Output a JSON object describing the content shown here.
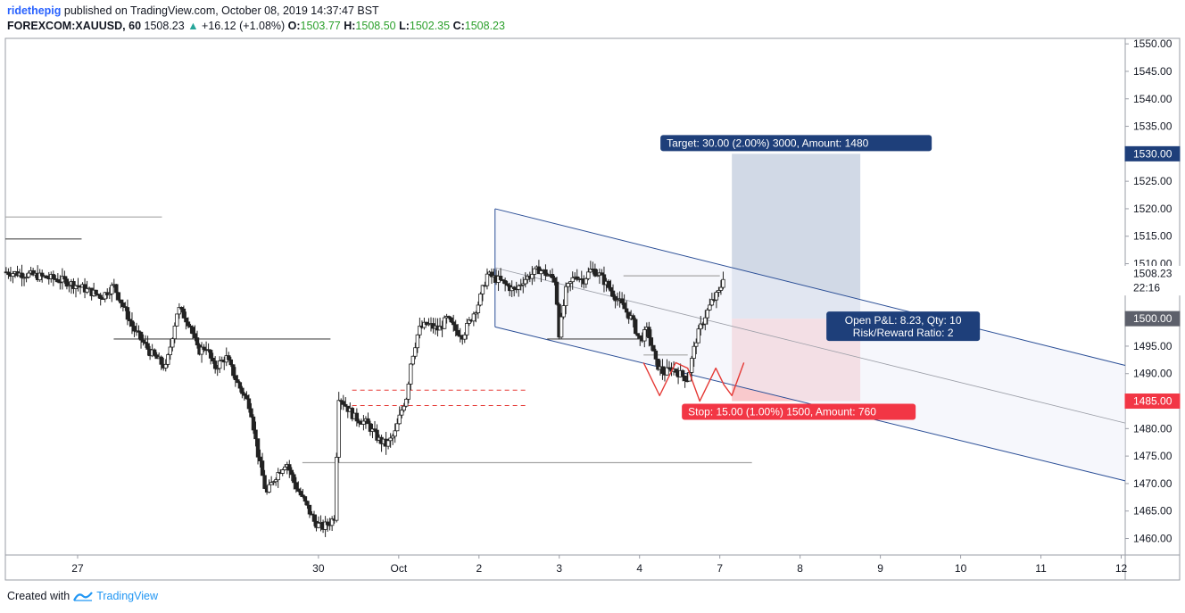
{
  "header": {
    "user": "ridethepig",
    "published": "published on TradingView.com, October 08, 2019 14:37:47 BST",
    "symbol": "FOREXCOM:XAUUSD, 60",
    "last": "1508.23",
    "change": "+16.12 (+1.08%)",
    "o_label": "O:",
    "o": "1503.77",
    "h_label": "H:",
    "h": "1508.50",
    "l_label": "L:",
    "l": "1502.35",
    "c_label": "C:",
    "c": "1508.23"
  },
  "footer": {
    "created": "Created with",
    "brand": "TradingView"
  },
  "colors": {
    "up": "#26a69a",
    "down": "#ef5350",
    "channel": "#2a4e96",
    "target_box": "#d1d9e6",
    "stop_box": "#f9c9cc",
    "target_label": "#1e3f7a",
    "stop_label": "#f23645"
  },
  "chart_data": {
    "type": "candlestick",
    "symbol": "FOREXCOM:XAUUSD",
    "timeframe": "60",
    "y_axis": {
      "ticks": [
        "1550.00",
        "1545.00",
        "1540.00",
        "1535.00",
        "1530.00",
        "1525.00",
        "1520.00",
        "1515.00",
        "1510.00",
        "1505.00",
        "1500.00",
        "1495.00",
        "1490.00",
        "1485.00",
        "1480.00",
        "1475.00",
        "1470.00",
        "1465.00",
        "1460.00"
      ],
      "ylim": [
        1457,
        1551
      ]
    },
    "x_axis": {
      "ticks": [
        {
          "label": "27",
          "x": 26.5
        },
        {
          "label": "30",
          "x": 29.5
        },
        {
          "label": "Oct",
          "x": 30.5
        },
        {
          "label": "2",
          "x": 31.5
        },
        {
          "label": "3",
          "x": 32.5
        },
        {
          "label": "4",
          "x": 33.5
        },
        {
          "label": "7",
          "x": 34.5
        },
        {
          "label": "8",
          "x": 35.5
        },
        {
          "label": "9",
          "x": 36.5
        },
        {
          "label": "10",
          "x": 37.5
        },
        {
          "label": "11",
          "x": 38.5
        },
        {
          "label": "12",
          "x": 39.5
        }
      ],
      "xlim": [
        25.6,
        39.55
      ]
    },
    "price_path": [
      {
        "x": 25.6,
        "y": 1508.5
      },
      {
        "x": 25.9,
        "y": 1508
      },
      {
        "x": 26.3,
        "y": 1507
      },
      {
        "x": 26.5,
        "y": 1506
      },
      {
        "x": 26.8,
        "y": 1504
      },
      {
        "x": 26.95,
        "y": 1506
      },
      {
        "x": 27.2,
        "y": 1498
      },
      {
        "x": 27.4,
        "y": 1494
      },
      {
        "x": 27.6,
        "y": 1491
      },
      {
        "x": 27.75,
        "y": 1502
      },
      {
        "x": 27.9,
        "y": 1499
      },
      {
        "x": 28.0,
        "y": 1494
      },
      {
        "x": 28.1,
        "y": 1495
      },
      {
        "x": 28.2,
        "y": 1491
      },
      {
        "x": 28.35,
        "y": 1493
      },
      {
        "x": 28.5,
        "y": 1488
      },
      {
        "x": 28.65,
        "y": 1484
      },
      {
        "x": 28.75,
        "y": 1475
      },
      {
        "x": 28.85,
        "y": 1468
      },
      {
        "x": 28.95,
        "y": 1471
      },
      {
        "x": 29.1,
        "y": 1474
      },
      {
        "x": 29.2,
        "y": 1470
      },
      {
        "x": 29.35,
        "y": 1466
      },
      {
        "x": 29.45,
        "y": 1463
      },
      {
        "x": 29.55,
        "y": 1462
      },
      {
        "x": 29.65,
        "y": 1463
      },
      {
        "x": 29.7,
        "y": 1464
      },
      {
        "x": 29.75,
        "y": 1486
      },
      {
        "x": 29.85,
        "y": 1484
      },
      {
        "x": 29.95,
        "y": 1482
      },
      {
        "x": 30.1,
        "y": 1481
      },
      {
        "x": 30.25,
        "y": 1478
      },
      {
        "x": 30.35,
        "y": 1477
      },
      {
        "x": 30.45,
        "y": 1479
      },
      {
        "x": 30.55,
        "y": 1484
      },
      {
        "x": 30.6,
        "y": 1486
      },
      {
        "x": 30.65,
        "y": 1492
      },
      {
        "x": 30.75,
        "y": 1498
      },
      {
        "x": 30.85,
        "y": 1499
      },
      {
        "x": 31.0,
        "y": 1498
      },
      {
        "x": 31.1,
        "y": 1500
      },
      {
        "x": 31.2,
        "y": 1498
      },
      {
        "x": 31.3,
        "y": 1497
      },
      {
        "x": 31.4,
        "y": 1500
      },
      {
        "x": 31.5,
        "y": 1503
      },
      {
        "x": 31.6,
        "y": 1508
      },
      {
        "x": 31.75,
        "y": 1507
      },
      {
        "x": 31.85,
        "y": 1506
      },
      {
        "x": 31.95,
        "y": 1505
      },
      {
        "x": 32.05,
        "y": 1507
      },
      {
        "x": 32.15,
        "y": 1508
      },
      {
        "x": 32.25,
        "y": 1509
      },
      {
        "x": 32.35,
        "y": 1508
      },
      {
        "x": 32.45,
        "y": 1507
      },
      {
        "x": 32.5,
        "y": 1497
      },
      {
        "x": 32.58,
        "y": 1505
      },
      {
        "x": 32.7,
        "y": 1508
      },
      {
        "x": 32.8,
        "y": 1507
      },
      {
        "x": 32.9,
        "y": 1509
      },
      {
        "x": 33.0,
        "y": 1508
      },
      {
        "x": 33.1,
        "y": 1506
      },
      {
        "x": 33.2,
        "y": 1504
      },
      {
        "x": 33.3,
        "y": 1502
      },
      {
        "x": 33.4,
        "y": 1500
      },
      {
        "x": 33.5,
        "y": 1496
      },
      {
        "x": 33.6,
        "y": 1498
      },
      {
        "x": 33.7,
        "y": 1492
      },
      {
        "x": 33.8,
        "y": 1490
      },
      {
        "x": 33.9,
        "y": 1491
      },
      {
        "x": 34.0,
        "y": 1490
      },
      {
        "x": 34.1,
        "y": 1489
      },
      {
        "x": 34.2,
        "y": 1496
      },
      {
        "x": 34.3,
        "y": 1500
      },
      {
        "x": 34.4,
        "y": 1503
      },
      {
        "x": 34.5,
        "y": 1505
      },
      {
        "x": 34.55,
        "y": 1508.23
      }
    ],
    "horizontal_lines": [
      {
        "y": 1518.5,
        "x1": 25.6,
        "x2": 27.55
      },
      {
        "y": 1514.5,
        "x1": 25.6,
        "x2": 26.55
      },
      {
        "y": 1496.3,
        "x1": 26.95,
        "x2": 29.65
      },
      {
        "y": 1496.3,
        "x1": 32.35,
        "x2": 33.5
      },
      {
        "y": 1473.8,
        "x1": 29.3,
        "x2": 34.9
      },
      {
        "y": 1507.8,
        "x1": 33.3,
        "x2": 34.5
      },
      {
        "y": 1493.4,
        "x1": 33.55,
        "x2": 34.1
      }
    ],
    "dashed_levels": [
      {
        "y": 1487.0,
        "x1": 29.92,
        "x2": 32.08
      },
      {
        "y": 1484.2,
        "x1": 29.92,
        "x2": 32.08
      }
    ],
    "channel": {
      "start": {
        "x": 31.7,
        "y": 1520
      },
      "end": {
        "x": 39.55,
        "y": 1491.5
      },
      "lower_start": {
        "x": 31.7,
        "y": 1498.5
      },
      "lower_end": {
        "x": 39.55,
        "y": 1470.5
      }
    },
    "position": {
      "entry": 1500.0,
      "target": 1530.0,
      "stop": 1485.0,
      "x1": 34.65,
      "x2": 36.25,
      "target_label": "Target: 30.00 (2.00%) 3000, Amount: 1480",
      "stop_label": "Stop: 15.00 (1.00%) 1500, Amount: 760",
      "pl_line1": "Open P&L: 8.23, Qty: 10",
      "pl_line2": "Risk/Reward Ratio: 2"
    },
    "price_tags": [
      {
        "text": "1530.00",
        "value": 1530.0,
        "bg": "#1e3f7a"
      },
      {
        "text": "1508.23",
        "value": 1508.23,
        "bg": "#ffffff"
      },
      {
        "text": "22:16",
        "value": 1505.6,
        "bg": "#ffffff"
      },
      {
        "text": "1500.00",
        "value": 1500.0,
        "bg": "#5d606b"
      },
      {
        "text": "1485.00",
        "value": 1485.0,
        "bg": "#f23645"
      }
    ],
    "head_shoulders": [
      [
        33.55,
        1492
      ],
      [
        33.75,
        1486
      ],
      [
        33.95,
        1492
      ],
      [
        34.1,
        1491
      ],
      [
        34.25,
        1485
      ],
      [
        34.45,
        1491
      ],
      [
        34.55,
        1488
      ],
      [
        34.65,
        1486
      ],
      [
        34.8,
        1492
      ]
    ]
  }
}
